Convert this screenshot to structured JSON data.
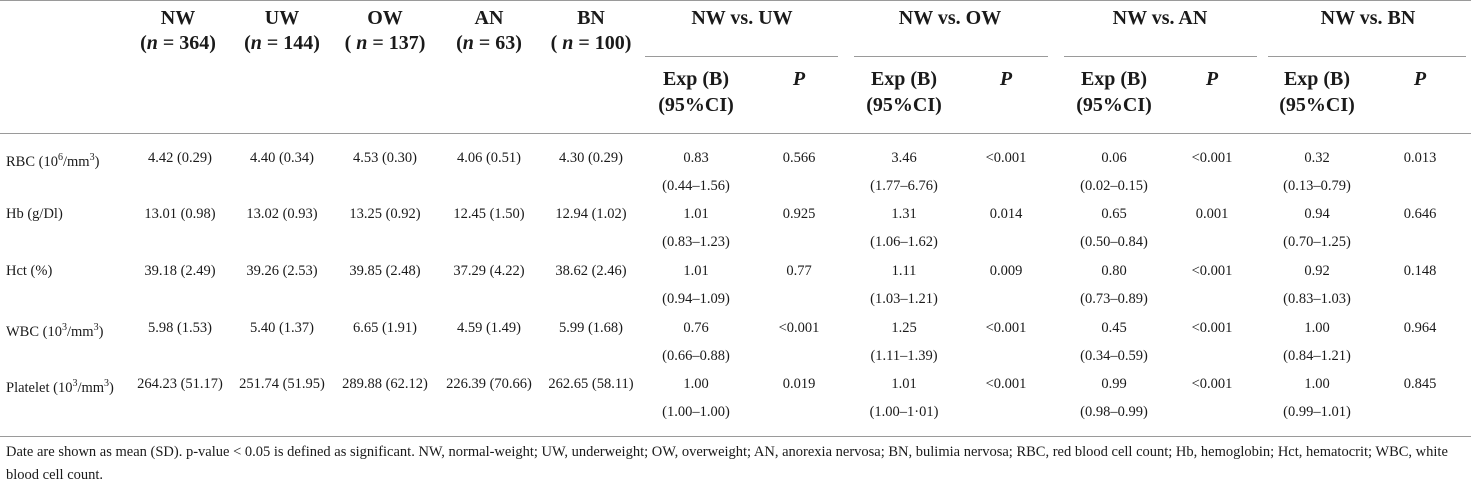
{
  "groups": [
    {
      "name": "NW",
      "n_prefix": "(n",
      "n_value": "= 364)"
    },
    {
      "name": "UW",
      "n_prefix": "(n",
      "n_value": "= 144)"
    },
    {
      "name": "OW",
      "n_prefix": "( n",
      "n_value": "= 137)"
    },
    {
      "name": "AN",
      "n_prefix": "(n",
      "n_value": "= 63)"
    },
    {
      "name": "BN",
      "n_prefix": "( n",
      "n_value": "= 100)"
    }
  ],
  "comparisons": [
    "NW vs. UW",
    "NW vs. OW",
    "NW vs. AN",
    "NW vs. BN"
  ],
  "sub_headers": {
    "exp_line1": "Exp (B)",
    "exp_line2": "(95%CI)",
    "p": "P"
  },
  "rows": [
    {
      "label": "RBC (10",
      "sup": "6",
      "label_mid": "/mm",
      "sup2": "3",
      "label_end": ")",
      "means": [
        "4.42 (0.29)",
        "4.40 (0.34)",
        "4.53 (0.30)",
        "4.06 (0.51)",
        "4.30 (0.29)"
      ],
      "comps": [
        {
          "exp": "0.83",
          "ci": "(0.44–1.56)",
          "p": "0.566"
        },
        {
          "exp": "3.46",
          "ci": "(1.77–6.76)",
          "p": "<0.001"
        },
        {
          "exp": "0.06",
          "ci": "(0.02–0.15)",
          "p": "<0.001"
        },
        {
          "exp": "0.32",
          "ci": "(0.13–0.79)",
          "p": "0.013"
        }
      ]
    },
    {
      "label": "Hb (g/Dl)",
      "sup": "",
      "label_mid": "",
      "sup2": "",
      "label_end": "",
      "means": [
        "13.01 (0.98)",
        "13.02 (0.93)",
        "13.25 (0.92)",
        "12.45 (1.50)",
        "12.94 (1.02)"
      ],
      "comps": [
        {
          "exp": "1.01",
          "ci": "(0.83–1.23)",
          "p": "0.925"
        },
        {
          "exp": "1.31",
          "ci": "(1.06–1.62)",
          "p": "0.014"
        },
        {
          "exp": "0.65",
          "ci": "(0.50–0.84)",
          "p": "0.001"
        },
        {
          "exp": "0.94",
          "ci": "(0.70–1.25)",
          "p": "0.646"
        }
      ]
    },
    {
      "label": "Hct (%)",
      "sup": "",
      "label_mid": "",
      "sup2": "",
      "label_end": "",
      "means": [
        "39.18 (2.49)",
        "39.26 (2.53)",
        "39.85 (2.48)",
        "37.29 (4.22)",
        "38.62 (2.46)"
      ],
      "comps": [
        {
          "exp": "1.01",
          "ci": "(0.94–1.09)",
          "p": "0.77"
        },
        {
          "exp": "1.11",
          "ci": "(1.03–1.21)",
          "p": "0.009"
        },
        {
          "exp": "0.80",
          "ci": "(0.73–0.89)",
          "p": "<0.001"
        },
        {
          "exp": "0.92",
          "ci": "(0.83–1.03)",
          "p": "0.148"
        }
      ]
    },
    {
      "label": "WBC (10",
      "sup": "3",
      "label_mid": "/mm",
      "sup2": "3",
      "label_end": ")",
      "means": [
        "5.98 (1.53)",
        "5.40 (1.37)",
        "6.65 (1.91)",
        "4.59 (1.49)",
        "5.99 (1.68)"
      ],
      "comps": [
        {
          "exp": "0.76",
          "ci": "(0.66–0.88)",
          "p": "<0.001"
        },
        {
          "exp": "1.25",
          "ci": "(1.11–1.39)",
          "p": "<0.001"
        },
        {
          "exp": "0.45",
          "ci": "(0.34–0.59)",
          "p": "<0.001"
        },
        {
          "exp": "1.00",
          "ci": "(0.84–1.21)",
          "p": "0.964"
        }
      ]
    },
    {
      "label": "Platelet (10",
      "sup": "3",
      "label_mid": "/mm",
      "sup2": "3",
      "label_end": ")",
      "means": [
        "264.23 (51.17)",
        "251.74 (51.95)",
        "289.88 (62.12)",
        "226.39 (70.66)",
        "262.65 (58.11)"
      ],
      "comps": [
        {
          "exp": "1.00",
          "ci": "(1.00–1.00)",
          "p": "0.019"
        },
        {
          "exp": "1.01",
          "ci": "(1.00–1·01)",
          "p": "<0.001"
        },
        {
          "exp": "0.99",
          "ci": "(0.98–0.99)",
          "p": "<0.001"
        },
        {
          "exp": "1.00",
          "ci": "(0.99–1.01)",
          "p": "0.845"
        }
      ]
    }
  ],
  "footnote": "Date are shown as mean (SD). p-value < 0.05 is defined as significant. NW, normal-weight; UW, underweight; OW, overweight; AN, anorexia nervosa; BN, bulimia nervosa; RBC, red blood cell count; Hb, hemoglobin; Hct, hematocrit; WBC, white blood cell count."
}
